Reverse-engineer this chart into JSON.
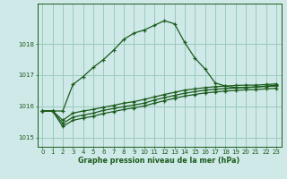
{
  "xlabel": "Graphe pression niveau de la mer (hPa)",
  "background_color": "#cfe8e8",
  "grid_color": "#99ccbb",
  "line_color": "#1a5c1a",
  "xlim": [
    -0.5,
    23.5
  ],
  "ylim": [
    1014.7,
    1019.3
  ],
  "yticks": [
    1015,
    1016,
    1017,
    1018
  ],
  "xticks": [
    0,
    1,
    2,
    3,
    4,
    5,
    6,
    7,
    8,
    9,
    10,
    11,
    12,
    13,
    14,
    15,
    16,
    17,
    18,
    19,
    20,
    21,
    22,
    23
  ],
  "line1_x": [
    0,
    1,
    2,
    3,
    4,
    5,
    6,
    7,
    8,
    9,
    10,
    11,
    12,
    13,
    14,
    15,
    16,
    17,
    18,
    19,
    20,
    21,
    22,
    23
  ],
  "line1_y": [
    1015.85,
    1015.85,
    1015.85,
    1016.7,
    1016.95,
    1017.25,
    1017.5,
    1017.8,
    1018.15,
    1018.35,
    1018.45,
    1018.6,
    1018.75,
    1018.65,
    1018.05,
    1017.55,
    1017.2,
    1016.75,
    1016.65,
    1016.6,
    1016.6,
    1016.62,
    1016.65,
    1016.68
  ],
  "line2_x": [
    0,
    1,
    2,
    3,
    4,
    5,
    6,
    7,
    8,
    9,
    10,
    11,
    12,
    13,
    14,
    15,
    16,
    17,
    18,
    19,
    20,
    21,
    22,
    23
  ],
  "line2_y": [
    1015.85,
    1015.85,
    1015.55,
    1015.78,
    1015.85,
    1015.9,
    1015.97,
    1016.03,
    1016.1,
    1016.15,
    1016.22,
    1016.3,
    1016.38,
    1016.45,
    1016.52,
    1016.56,
    1016.6,
    1016.63,
    1016.65,
    1016.67,
    1016.68,
    1016.68,
    1016.7,
    1016.72
  ],
  "line3_x": [
    0,
    1,
    2,
    3,
    4,
    5,
    6,
    7,
    8,
    9,
    10,
    11,
    12,
    13,
    14,
    15,
    16,
    17,
    18,
    19,
    20,
    21,
    22,
    23
  ],
  "line3_y": [
    1015.85,
    1015.85,
    1015.45,
    1015.65,
    1015.72,
    1015.78,
    1015.87,
    1015.93,
    1015.99,
    1016.04,
    1016.1,
    1016.2,
    1016.28,
    1016.35,
    1016.42,
    1016.47,
    1016.52,
    1016.55,
    1016.57,
    1016.59,
    1016.61,
    1016.62,
    1016.64,
    1016.65
  ],
  "line4_x": [
    0,
    1,
    2,
    3,
    4,
    5,
    6,
    7,
    8,
    9,
    10,
    11,
    12,
    13,
    14,
    15,
    16,
    17,
    18,
    19,
    20,
    21,
    22,
    23
  ],
  "line4_y": [
    1015.85,
    1015.85,
    1015.35,
    1015.55,
    1015.62,
    1015.68,
    1015.77,
    1015.83,
    1015.9,
    1015.95,
    1016.01,
    1016.1,
    1016.18,
    1016.26,
    1016.33,
    1016.38,
    1016.43,
    1016.46,
    1016.49,
    1016.51,
    1016.53,
    1016.54,
    1016.56,
    1016.58
  ]
}
